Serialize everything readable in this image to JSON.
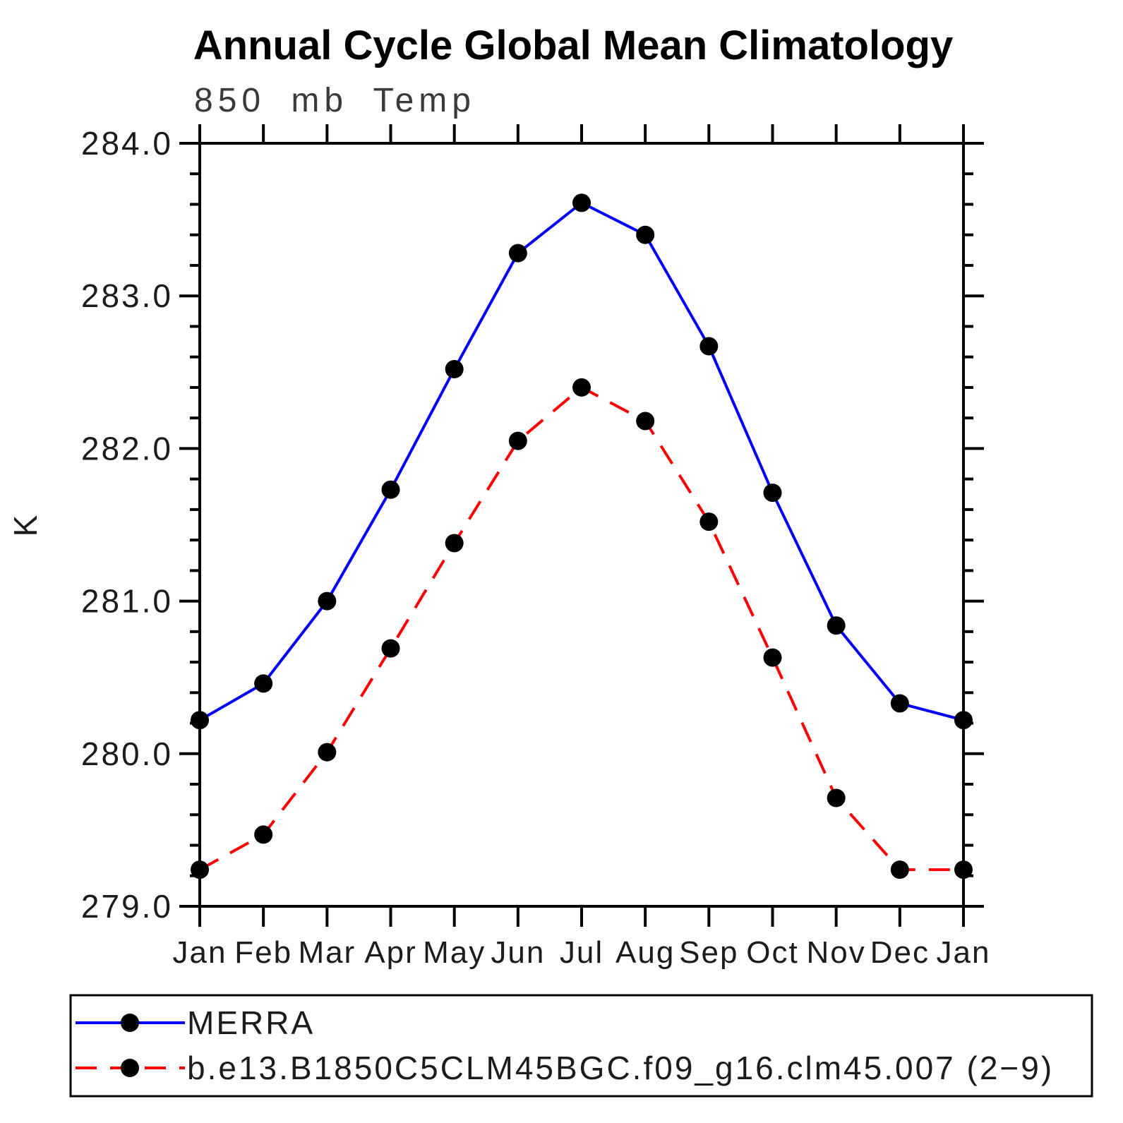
{
  "page": {
    "background": "#ffffff",
    "axis_color": "#000000",
    "marker_color": "#000000"
  },
  "header": {
    "title": "Annual Cycle Global Mean Climatology",
    "subtitle": "850 mb Temp"
  },
  "chart_data": {
    "type": "line",
    "title": "Annual Cycle Global Mean Climatology",
    "subtitle": "850 mb Temp",
    "xlabel": "",
    "ylabel": "K",
    "categories": [
      "Jan",
      "Feb",
      "Mar",
      "Apr",
      "May",
      "Jun",
      "Jul",
      "Aug",
      "Sep",
      "Oct",
      "Nov",
      "Dec",
      "Jan"
    ],
    "series": [
      {
        "name": "MERRA",
        "color": "#0000ff",
        "line_style": "solid",
        "marker": "circle",
        "values": [
          280.22,
          280.46,
          281.0,
          281.73,
          282.52,
          283.28,
          283.61,
          283.4,
          282.67,
          281.71,
          280.84,
          280.33,
          280.22
        ]
      },
      {
        "name": "b.e13.B1850C5CLM45BGC.f09_g16.clm45.007 (2−9)",
        "color": "#ff0000",
        "line_style": "dashed",
        "marker": "circle",
        "values": [
          279.24,
          279.47,
          280.01,
          280.69,
          281.38,
          282.05,
          282.4,
          282.18,
          281.52,
          280.63,
          279.71,
          279.24,
          279.24
        ]
      }
    ],
    "ylim": [
      279.0,
      284.0
    ],
    "y_major_step": 1.0,
    "y_minor_step": 0.2,
    "y_tick_decimals": 1,
    "grid": "off",
    "legend_position": "bottom",
    "marker_color": "#000000"
  }
}
